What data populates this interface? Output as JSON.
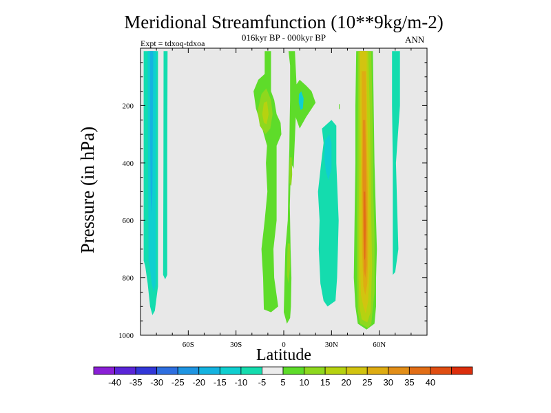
{
  "chart_data": {
    "type": "heatmap",
    "title": "Meridional Streamfunction (10**9kg/m-2)",
    "subtitle": "016kyr BP - 000kyr BP",
    "left_note": "Expt = tdxoq-tdxoa",
    "right_note": "ANN",
    "xlabel": "Latitude",
    "ylabel": "Pressure (in hPa)",
    "xlim": [
      -90,
      90
    ],
    "ylim": [
      1000,
      0
    ],
    "x_ticks": [
      {
        "value": -60,
        "label": "60S"
      },
      {
        "value": -30,
        "label": "30S"
      },
      {
        "value": 0,
        "label": "0"
      },
      {
        "value": 30,
        "label": "30N"
      },
      {
        "value": 60,
        "label": "60N"
      }
    ],
    "y_ticks": [
      {
        "value": 200,
        "label": "200"
      },
      {
        "value": 400,
        "label": "400"
      },
      {
        "value": 600,
        "label": "600"
      },
      {
        "value": 800,
        "label": "800"
      },
      {
        "value": 1000,
        "label": "1000"
      }
    ],
    "colorbar": {
      "labels": [
        "-40",
        "-35",
        "-30",
        "-25",
        "-20",
        "-15",
        "-10",
        "-5",
        "5",
        "10",
        "15",
        "20",
        "25",
        "30",
        "35",
        "40"
      ],
      "colors": [
        "#8a1fd6",
        "#5a25d8",
        "#3237d8",
        "#2e6fe0",
        "#1f95e2",
        "#14b3e0",
        "#0fcfd0",
        "#14dcae",
        "#ececec",
        "#5edc2a",
        "#8ed81e",
        "#b6d210",
        "#d2c410",
        "#deac12",
        "#e28e18",
        "#e26e16",
        "#e04e12",
        "#dc2e0c"
      ]
    },
    "background_color": "#e8e8e8",
    "regions": [
      {
        "name": "sh-highlat-outer",
        "color": "#14dcae",
        "points": [
          [
            -88,
            10
          ],
          [
            -79,
            10
          ],
          [
            -79,
            830
          ],
          [
            -81,
            915
          ],
          [
            -82.5,
            930
          ],
          [
            -84,
            900
          ],
          [
            -85.5,
            820
          ],
          [
            -87,
            760
          ],
          [
            -88,
            740
          ]
        ]
      },
      {
        "name": "sh-highlat-mid",
        "color": "#0fcfd0",
        "points": [
          [
            -85.5,
            10
          ],
          [
            -80,
            10
          ],
          [
            -80.5,
            420
          ],
          [
            -80.3,
            820
          ],
          [
            -81.7,
            850
          ],
          [
            -83,
            820
          ],
          [
            -84.2,
            760
          ],
          [
            -85,
            740
          ]
        ]
      },
      {
        "name": "sh-highlat-core",
        "color": "#14b3e0",
        "points": [
          [
            -84,
            10
          ],
          [
            -82,
            10
          ],
          [
            -82.3,
            300
          ],
          [
            -82.5,
            500
          ],
          [
            -83,
            580
          ],
          [
            -83.7,
            500
          ],
          [
            -84,
            300
          ]
        ]
      },
      {
        "name": "sh-highlat-strip",
        "color": "#14dcae",
        "points": [
          [
            -75.5,
            10
          ],
          [
            -73,
            10
          ],
          [
            -73.2,
            400
          ],
          [
            -73.2,
            790
          ],
          [
            -74.5,
            805
          ],
          [
            -75.8,
            790
          ],
          [
            -75.6,
            400
          ]
        ]
      },
      {
        "name": "sh-subtropics",
        "color": "#5edc2a",
        "points": [
          [
            -12,
            10
          ],
          [
            -8,
            10
          ],
          [
            -8,
            150
          ],
          [
            -6,
            180
          ],
          [
            -4.5,
            230
          ],
          [
            -2,
            260
          ],
          [
            -1.5,
            300
          ],
          [
            -3,
            320
          ],
          [
            -4.5,
            340
          ],
          [
            -4.5,
            600
          ],
          [
            -6.5,
            700
          ],
          [
            -6,
            800
          ],
          [
            -3.5,
            900
          ],
          [
            -8,
            920
          ],
          [
            -12.5,
            910
          ],
          [
            -13,
            800
          ],
          [
            -14,
            700
          ],
          [
            -12,
            600
          ],
          [
            -10.3,
            500
          ],
          [
            -11.2,
            400
          ],
          [
            -10.5,
            340
          ],
          [
            -13.5,
            280
          ],
          [
            -17.5,
            210
          ],
          [
            -19,
            150
          ],
          [
            -16,
            110
          ],
          [
            -12,
            90
          ]
        ]
      },
      {
        "name": "sh-subtropics-yellowgreen",
        "color": "#8ed81e",
        "points": [
          [
            -14,
            160
          ],
          [
            -11,
            140
          ],
          [
            -8,
            180
          ],
          [
            -7,
            230
          ],
          [
            -8.5,
            280
          ],
          [
            -11.5,
            300
          ],
          [
            -15,
            270
          ],
          [
            -16.5,
            220
          ]
        ]
      },
      {
        "name": "sh-subtropics-core",
        "color": "#b6d210",
        "points": [
          [
            -12.5,
            190
          ],
          [
            -10.5,
            185
          ],
          [
            -9.5,
            230
          ],
          [
            -10.8,
            265
          ],
          [
            -12.5,
            260
          ],
          [
            -13.5,
            230
          ]
        ]
      },
      {
        "name": "eq-column",
        "color": "#5edc2a",
        "points": [
          [
            3,
            10
          ],
          [
            7,
            10
          ],
          [
            8.2,
            150
          ],
          [
            6.7,
            350
          ],
          [
            6.2,
            420
          ],
          [
            4.5,
            400
          ],
          [
            3.8,
            550
          ],
          [
            4.3,
            700
          ],
          [
            4.8,
            800
          ],
          [
            4.5,
            900
          ],
          [
            4,
            940
          ],
          [
            2,
            960
          ],
          [
            0,
            920
          ],
          [
            0.5,
            800
          ],
          [
            1,
            700
          ],
          [
            2.5,
            600
          ],
          [
            3,
            450
          ],
          [
            3.5,
            350
          ],
          [
            3.7,
            250
          ],
          [
            4,
            180
          ],
          [
            4,
            60
          ]
        ]
      },
      {
        "name": "eq-column-ygreen-a",
        "color": "#8ed81e",
        "points": [
          [
            3.8,
            380
          ],
          [
            5,
            380
          ],
          [
            5.3,
            440
          ],
          [
            4.7,
            480
          ],
          [
            3.6,
            470
          ],
          [
            3.5,
            420
          ]
        ]
      },
      {
        "name": "eq-column-ygreen-b",
        "color": "#8ed81e",
        "points": [
          [
            2.5,
            680
          ],
          [
            3.8,
            680
          ],
          [
            4,
            760
          ],
          [
            3,
            820
          ],
          [
            2,
            790
          ],
          [
            2.2,
            720
          ]
        ]
      },
      {
        "name": "nh-tropics-upper",
        "color": "#5edc2a",
        "points": [
          [
            7.5,
            130
          ],
          [
            10,
            110
          ],
          [
            14,
            130
          ],
          [
            17.5,
            150
          ],
          [
            20,
            190
          ],
          [
            14,
            240
          ],
          [
            10,
            280
          ],
          [
            7.5,
            240
          ],
          [
            7,
            180
          ]
        ]
      },
      {
        "name": "nh-tropics-upper-cyan",
        "color": "#0fcfd0",
        "points": [
          [
            9.5,
            160
          ],
          [
            11,
            150
          ],
          [
            12.5,
            175
          ],
          [
            12,
            210
          ],
          [
            10.5,
            215
          ],
          [
            9.4,
            190
          ]
        ]
      },
      {
        "name": "nh-tropics-lower",
        "color": "#14dcae",
        "points": [
          [
            24,
            280
          ],
          [
            30,
            250
          ],
          [
            33,
            270
          ],
          [
            33,
            400
          ],
          [
            34.5,
            600
          ],
          [
            34,
            700
          ],
          [
            33.5,
            800
          ],
          [
            32.5,
            880
          ],
          [
            27.5,
            900
          ],
          [
            25,
            880
          ],
          [
            23,
            820
          ],
          [
            22,
            700
          ],
          [
            22.5,
            600
          ],
          [
            21.5,
            500
          ],
          [
            23.5,
            400
          ],
          [
            25,
            330
          ]
        ]
      },
      {
        "name": "nh-tropics-lower-cyan",
        "color": "#0fcfd0",
        "points": [
          [
            26,
            320
          ],
          [
            28.5,
            300
          ],
          [
            30,
            330
          ],
          [
            30,
            420
          ],
          [
            28,
            460
          ],
          [
            26.5,
            430
          ],
          [
            25.5,
            380
          ]
        ]
      },
      {
        "name": "nh-midlat-outer",
        "color": "#5edc2a",
        "points": [
          [
            45.5,
            10
          ],
          [
            56,
            10
          ],
          [
            57,
            400
          ],
          [
            58,
            600
          ],
          [
            58.5,
            700
          ],
          [
            58,
            800
          ],
          [
            58,
            900
          ],
          [
            57,
            960
          ],
          [
            52,
            980
          ],
          [
            46.5,
            960
          ],
          [
            45,
            900
          ],
          [
            44,
            800
          ],
          [
            44.5,
            600
          ],
          [
            45,
            400
          ],
          [
            45,
            200
          ]
        ]
      },
      {
        "name": "nh-midlat-ygreen",
        "color": "#8ed81e",
        "points": [
          [
            46.5,
            10
          ],
          [
            55,
            10
          ],
          [
            56,
            300
          ],
          [
            56.2,
            500
          ],
          [
            57,
            650
          ],
          [
            57,
            850
          ],
          [
            55,
            960
          ],
          [
            53,
            975
          ],
          [
            48,
            960
          ],
          [
            46.5,
            920
          ],
          [
            46,
            800
          ],
          [
            46,
            600
          ],
          [
            46.2,
            400
          ],
          [
            46.5,
            200
          ]
        ]
      },
      {
        "name": "nh-midlat-yellow",
        "color": "#b6d210",
        "points": [
          [
            47.5,
            10
          ],
          [
            53,
            10
          ],
          [
            54,
            200
          ],
          [
            54.5,
            400
          ],
          [
            55,
            600
          ],
          [
            55.5,
            760
          ],
          [
            54.5,
            920
          ],
          [
            52.5,
            955
          ],
          [
            49,
            945
          ],
          [
            47.5,
            900
          ],
          [
            47,
            800
          ],
          [
            47,
            600
          ],
          [
            47.5,
            400
          ],
          [
            47.5,
            200
          ]
        ]
      },
      {
        "name": "nh-midlat-gold",
        "color": "#d2c410",
        "points": [
          [
            48,
            10
          ],
          [
            52,
            10
          ],
          [
            52.5,
            250
          ],
          [
            53.5,
            400
          ],
          [
            54,
            600
          ],
          [
            54,
            760
          ],
          [
            53,
            880
          ],
          [
            51.5,
            925
          ],
          [
            50,
            900
          ],
          [
            48.5,
            860
          ],
          [
            48,
            760
          ],
          [
            48,
            600
          ],
          [
            48.5,
            400
          ],
          [
            48.2,
            250
          ]
        ]
      },
      {
        "name": "nh-midlat-orange",
        "color": "#deac12",
        "points": [
          [
            49,
            80
          ],
          [
            51.5,
            80
          ],
          [
            52,
            300
          ],
          [
            52.8,
            500
          ],
          [
            53,
            700
          ],
          [
            52.5,
            820
          ],
          [
            51.2,
            860
          ],
          [
            50,
            830
          ],
          [
            49.2,
            700
          ],
          [
            49,
            500
          ],
          [
            49.2,
            300
          ]
        ]
      },
      {
        "name": "nh-midlat-darkorange",
        "color": "#e28e18",
        "points": [
          [
            49.7,
            250
          ],
          [
            51.2,
            250
          ],
          [
            51.8,
            450
          ],
          [
            52.2,
            600
          ],
          [
            52,
            760
          ],
          [
            51.2,
            800
          ],
          [
            50.3,
            770
          ],
          [
            49.8,
            600
          ],
          [
            49.5,
            450
          ]
        ]
      },
      {
        "name": "nh-midlat-core",
        "color": "#e26e16",
        "points": [
          [
            50.2,
            500
          ],
          [
            51.2,
            500
          ],
          [
            51.5,
            620
          ],
          [
            51.2,
            730
          ],
          [
            50.6,
            740
          ],
          [
            50.2,
            650
          ]
        ]
      },
      {
        "name": "nh-highlat-strip",
        "color": "#14dcae",
        "points": [
          [
            68,
            10
          ],
          [
            73,
            10
          ],
          [
            73,
            200
          ],
          [
            70.5,
            400
          ],
          [
            71.5,
            600
          ],
          [
            72,
            700
          ],
          [
            70,
            780
          ],
          [
            68.5,
            790
          ],
          [
            68.5,
            600
          ],
          [
            68.5,
            400
          ],
          [
            68,
            200
          ]
        ]
      },
      {
        "name": "nh-dot",
        "color": "#5edc2a",
        "points": [
          [
            34.6,
            195
          ],
          [
            35.1,
            195
          ],
          [
            35.1,
            212
          ],
          [
            34.6,
            212
          ]
        ]
      }
    ]
  }
}
